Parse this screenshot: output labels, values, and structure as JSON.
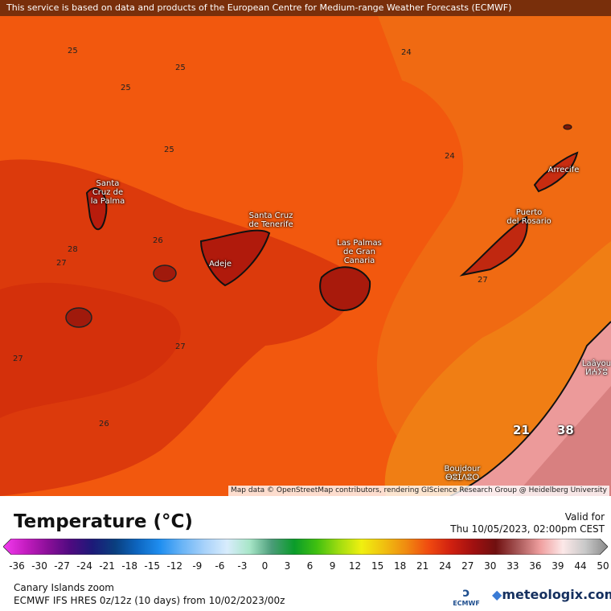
{
  "banner": "This service is based on data and products of the European Centre for Medium-range Weather Forecasts (ECMWF)",
  "attribution": "Map data © OpenStreetMap contributors, rendering GIScience Research Group @ Heidelberg University",
  "cities": [
    {
      "name": "Santa Cruz de la Palma",
      "line1": "Santa",
      "line2": "Cruz de",
      "line3": "la Palma"
    },
    {
      "name": "Santa Cruz de Tenerife",
      "line1": "Santa Cruz",
      "line2": "de Tenerife"
    },
    {
      "name": "Adeje",
      "line1": "Adeje"
    },
    {
      "name": "Las Palmas de Gran Canaria",
      "line1": "Las Palmas",
      "line2": "de Gran",
      "line3": "Canaria"
    },
    {
      "name": "Puerto del Rosario",
      "line1": "Puerto",
      "line2": "del Rosario"
    },
    {
      "name": "Arrecife",
      "line1": "Arrecife"
    },
    {
      "name": "Laayoune",
      "line1": "Laâyou",
      "line2": "ⵍⵄⵢⵓ"
    },
    {
      "name": "Boujdour",
      "line1": "Boujdour",
      "line2": "ⴱⵓⵊⴷⵓⵔ"
    }
  ],
  "contour_labels": [
    "25",
    "25",
    "25",
    "25",
    "24",
    "24",
    "26",
    "28",
    "27",
    "27",
    "27",
    "26",
    "27"
  ],
  "highlight_values": [
    "21",
    "38"
  ],
  "legend": {
    "title": "Temperature (°C)",
    "valid_label": "Valid for",
    "valid_time": "Thu 10/05/2023, 02:00pm CEST",
    "ticks": [
      "-36",
      "-30",
      "-27",
      "-24",
      "-21",
      "-18",
      "-15",
      "-12",
      "-9",
      "-6",
      "-3",
      "0",
      "3",
      "6",
      "9",
      "12",
      "15",
      "18",
      "21",
      "24",
      "27",
      "30",
      "33",
      "36",
      "39",
      "44",
      "50"
    ],
    "colors": [
      "#f43cf0",
      "#c41cc0",
      "#8a0f98",
      "#4e0a80",
      "#1c1a78",
      "#0a3f7f",
      "#0d66c0",
      "#1f8ef0",
      "#6ab4f6",
      "#a8d2fa",
      "#d8ecfc",
      "#a8e6c8",
      "#4a9c78",
      "#0a9c2a",
      "#40c010",
      "#a0dc10",
      "#f0f010",
      "#f0c010",
      "#f08a10",
      "#f04a10",
      "#d02010",
      "#a01010",
      "#701010",
      "#a85858",
      "#f0a0a0",
      "#fce8e8",
      "#c8c8c8",
      "#888888"
    ]
  },
  "footer": {
    "region": "Canary Islands zoom",
    "model": "ECMWF IFS HRES 0z/12z (10 days) from  10/02/2023/00z",
    "ecmwf_logo": "ECMWF",
    "brand": "meteologix.com"
  }
}
